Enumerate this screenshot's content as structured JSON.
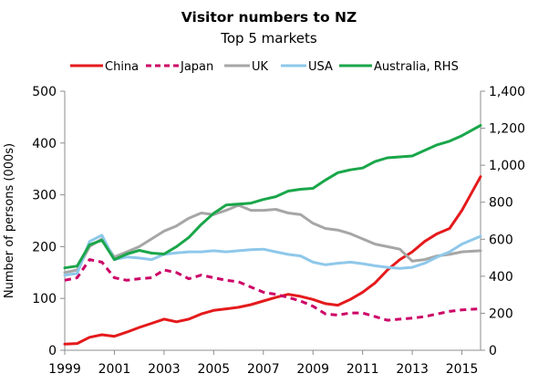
{
  "chart_data": {
    "type": "line",
    "title": "Visitor numbers to NZ",
    "subtitle": "Top 5 markets",
    "ylabel": "Number of persons (000s)",
    "ylabel_right": "",
    "xlim": [
      1999,
      2015.75
    ],
    "ylim": [
      0,
      500
    ],
    "ylim_right": [
      0,
      1400
    ],
    "x_ticks": [
      "1999",
      "2001",
      "2003",
      "2005",
      "2007",
      "2009",
      "2011",
      "2013",
      "2015"
    ],
    "y_ticks": [
      "0",
      "100",
      "200",
      "300",
      "400",
      "500"
    ],
    "y_ticks_right": [
      "0",
      "200",
      "400",
      "600",
      "800",
      "1,000",
      "1,200",
      "1,400"
    ],
    "grid": false,
    "legend_position": "top",
    "series": [
      {
        "name": "China",
        "axis": "left",
        "color": "#e41a1c",
        "style": "solid",
        "x": [
          1999,
          1999.5,
          2000,
          2000.5,
          2001,
          2001.5,
          2002,
          2002.5,
          2003,
          2003.5,
          2004,
          2004.5,
          2005,
          2005.5,
          2006,
          2006.5,
          2007,
          2007.5,
          2008,
          2008.5,
          2009,
          2009.5,
          2010,
          2010.5,
          2011,
          2011.5,
          2012,
          2012.5,
          2013,
          2013.5,
          2014,
          2014.5,
          2015,
          2015.75
        ],
        "values": [
          12,
          13,
          25,
          30,
          27,
          35,
          44,
          52,
          60,
          55,
          60,
          70,
          77,
          80,
          83,
          88,
          95,
          102,
          108,
          104,
          98,
          90,
          87,
          98,
          112,
          130,
          155,
          175,
          190,
          210,
          225,
          235,
          270,
          335
        ]
      },
      {
        "name": "Japan",
        "axis": "left",
        "color": "#cc0066",
        "style": "dashed",
        "x": [
          1999,
          1999.5,
          2000,
          2000.5,
          2001,
          2001.5,
          2002,
          2002.5,
          2003,
          2003.5,
          2004,
          2004.5,
          2005,
          2005.5,
          2006,
          2006.5,
          2007,
          2007.5,
          2008,
          2008.5,
          2009,
          2009.5,
          2010,
          2010.5,
          2011,
          2011.5,
          2012,
          2012.5,
          2013,
          2013.5,
          2014,
          2014.5,
          2015,
          2015.75
        ],
        "values": [
          135,
          140,
          175,
          170,
          140,
          135,
          138,
          140,
          155,
          150,
          138,
          145,
          140,
          135,
          132,
          122,
          112,
          108,
          102,
          95,
          85,
          70,
          68,
          72,
          72,
          65,
          58,
          60,
          62,
          65,
          70,
          75,
          78,
          80
        ]
      },
      {
        "name": "UK",
        "axis": "left",
        "color": "#a6a6a6",
        "style": "solid",
        "x": [
          1999,
          1999.5,
          2000,
          2000.5,
          2001,
          2001.5,
          2002,
          2002.5,
          2003,
          2003.5,
          2004,
          2004.5,
          2005,
          2005.5,
          2006,
          2006.5,
          2007,
          2007.5,
          2008,
          2008.5,
          2009,
          2009.5,
          2010,
          2010.5,
          2011,
          2011.5,
          2012,
          2012.5,
          2013,
          2013.5,
          2014,
          2014.5,
          2015,
          2015.75
        ],
        "values": [
          150,
          155,
          200,
          215,
          180,
          190,
          200,
          215,
          230,
          240,
          255,
          265,
          262,
          270,
          280,
          270,
          270,
          272,
          265,
          262,
          245,
          235,
          232,
          225,
          215,
          205,
          200,
          195,
          172,
          175,
          182,
          185,
          190,
          192
        ]
      },
      {
        "name": "USA",
        "axis": "left",
        "color": "#8ec8ea",
        "style": "solid",
        "x": [
          1999,
          1999.5,
          2000,
          2000.5,
          2001,
          2001.5,
          2002,
          2002.5,
          2003,
          2003.5,
          2004,
          2004.5,
          2005,
          2005.5,
          2006,
          2006.5,
          2007,
          2007.5,
          2008,
          2008.5,
          2009,
          2009.5,
          2010,
          2010.5,
          2011,
          2011.5,
          2012,
          2012.5,
          2013,
          2013.5,
          2014,
          2014.5,
          2015,
          2015.75
        ],
        "values": [
          145,
          148,
          210,
          222,
          175,
          180,
          178,
          175,
          185,
          188,
          190,
          190,
          192,
          190,
          192,
          194,
          195,
          190,
          185,
          182,
          170,
          165,
          168,
          170,
          167,
          163,
          160,
          158,
          160,
          168,
          180,
          190,
          205,
          220
        ]
      },
      {
        "name": "Australia, RHS",
        "axis": "right",
        "color": "#1aa64a",
        "style": "solid",
        "x": [
          1999,
          1999.5,
          2000,
          2000.5,
          2001,
          2001.5,
          2002,
          2002.5,
          2003,
          2003.5,
          2004,
          2004.5,
          2005,
          2005.5,
          2006,
          2006.5,
          2007,
          2007.5,
          2008,
          2008.5,
          2009,
          2009.5,
          2010,
          2010.5,
          2011,
          2011.5,
          2012,
          2012.5,
          2013,
          2013.5,
          2014,
          2014.5,
          2015,
          2015.75
        ],
        "values": [
          445,
          455,
          570,
          595,
          490,
          520,
          540,
          525,
          520,
          560,
          610,
          680,
          740,
          785,
          790,
          795,
          815,
          830,
          860,
          870,
          875,
          920,
          960,
          975,
          985,
          1020,
          1040,
          1045,
          1050,
          1080,
          1110,
          1130,
          1160,
          1215
        ]
      }
    ]
  }
}
